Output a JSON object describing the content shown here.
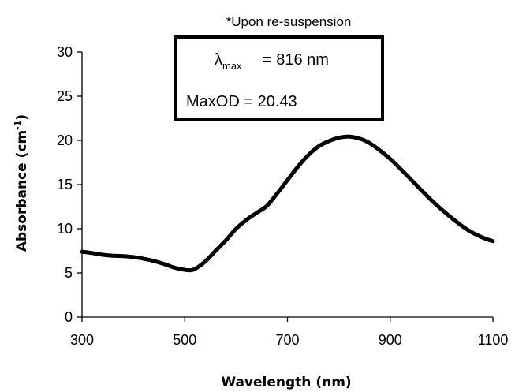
{
  "chart_data": {
    "type": "line",
    "title": "*Upon re-suspension",
    "xlabel": "Wavelength (nm)",
    "ylabel_main": "Absorbance (cm",
    "ylabel_sup": "-1",
    "ylabel_close": ")",
    "xlim": [
      300,
      1100
    ],
    "ylim": [
      0,
      30
    ],
    "xticks": [
      300,
      500,
      700,
      900,
      1100
    ],
    "yticks": [
      0,
      5,
      10,
      15,
      20,
      25,
      30
    ],
    "grid": false,
    "legend": "none",
    "line_color": "#000000",
    "series": [
      {
        "x": [
          300,
          320,
          340,
          360,
          380,
          400,
          420,
          440,
          460,
          480,
          500,
          510,
          520,
          540,
          560,
          580,
          600,
          620,
          640,
          660,
          680,
          700,
          720,
          740,
          760,
          780,
          800,
          816,
          830,
          850,
          870,
          900,
          930,
          960,
          990,
          1020,
          1050,
          1080,
          1100
        ],
        "values": [
          7.4,
          7.25,
          7.05,
          6.95,
          6.9,
          6.8,
          6.6,
          6.35,
          6.0,
          5.6,
          5.35,
          5.3,
          5.45,
          6.3,
          7.5,
          8.7,
          10.0,
          11.0,
          11.8,
          12.6,
          14.0,
          15.5,
          17.0,
          18.3,
          19.3,
          19.9,
          20.3,
          20.43,
          20.35,
          20.0,
          19.3,
          17.9,
          16.2,
          14.4,
          12.7,
          11.2,
          9.9,
          9.0,
          8.6
        ]
      }
    ],
    "annotation": {
      "lambda_symbol": "λ",
      "lambda_sub": "max",
      "lambda_value": "=  816 nm",
      "maxod_text": "MaxOD =  20.43"
    }
  }
}
